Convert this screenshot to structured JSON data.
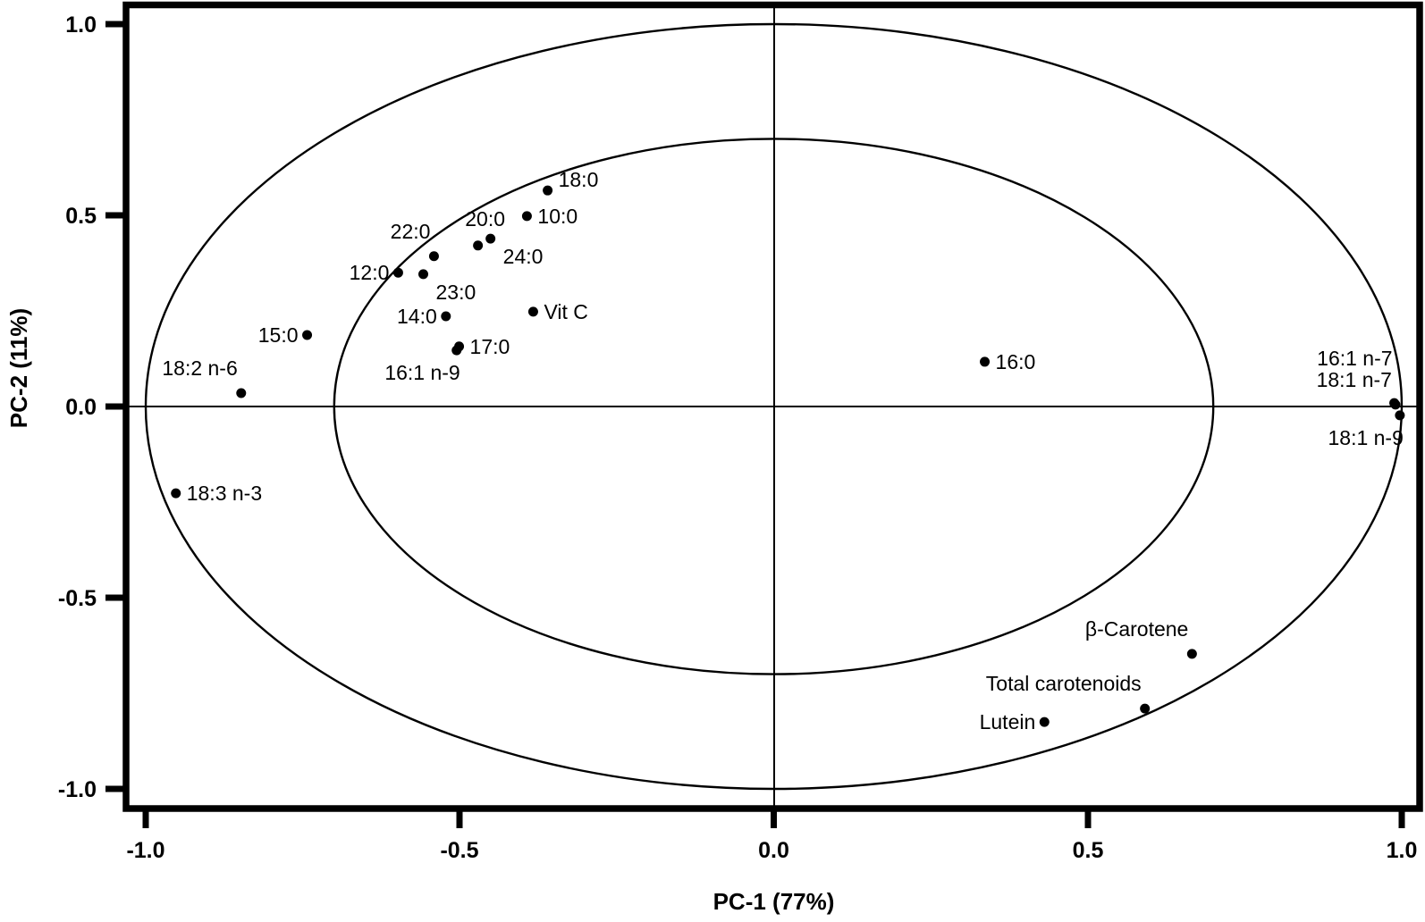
{
  "chart_data": {
    "type": "scatter",
    "title": "",
    "xlabel": "PC-1 (77%)",
    "ylabel": "PC-2 (11%)",
    "xlim": [
      -1.0,
      1.0
    ],
    "ylim": [
      -1.0,
      1.0
    ],
    "xticks": [
      "-1.0",
      "-0.5",
      "0.0",
      "0.5",
      "1.0"
    ],
    "yticks": [
      "1.0",
      "0.5",
      "0.0",
      "-0.5",
      "-1.0"
    ],
    "grid": false,
    "reference_lines": {
      "x": 0.0,
      "y": 0.0
    },
    "ellipses": [
      {
        "name": "outer",
        "radius": 1.0
      },
      {
        "name": "inner",
        "radius": 0.7
      }
    ],
    "points": [
      {
        "label": "18:0",
        "x": -0.36,
        "y": 0.565,
        "label_pos": "right-up"
      },
      {
        "label": "10:0",
        "x": -0.393,
        "y": 0.498,
        "label_pos": "right"
      },
      {
        "label": "20:0",
        "x": -0.471,
        "y": 0.421,
        "label_pos": "above"
      },
      {
        "label": "24:0",
        "x": -0.451,
        "y": 0.439,
        "label_pos": "below-right"
      },
      {
        "label": "22:0",
        "x": -0.541,
        "y": 0.393,
        "label_pos": "above-left"
      },
      {
        "label": "12:0",
        "x": -0.598,
        "y": 0.35,
        "label_pos": "left"
      },
      {
        "label": "23:0",
        "x": -0.558,
        "y": 0.346,
        "label_pos": "below-right"
      },
      {
        "label": "Vit C",
        "x": -0.383,
        "y": 0.248,
        "label_pos": "right"
      },
      {
        "label": "14:0",
        "x": -0.522,
        "y": 0.236,
        "label_pos": "left"
      },
      {
        "label": "17:0",
        "x": -0.501,
        "y": 0.157,
        "label_pos": "right"
      },
      {
        "label": "16:1 n-9",
        "x": -0.505,
        "y": 0.147,
        "label_pos": "below-left"
      },
      {
        "label": "15:0",
        "x": -0.743,
        "y": 0.187,
        "label_pos": "left"
      },
      {
        "label": "18:2 n-6",
        "x": -0.848,
        "y": 0.035,
        "label_pos": "above-left"
      },
      {
        "label": "18:3 n-3",
        "x": -0.952,
        "y": -0.227,
        "label_pos": "right"
      },
      {
        "label": "16:0",
        "x": 0.336,
        "y": 0.117,
        "label_pos": "right"
      },
      {
        "label": "16:1 n-7",
        "x": 0.988,
        "y": 0.009,
        "label_pos": "above-left-far"
      },
      {
        "label": "18:1 n-7",
        "x": 0.99,
        "y": 0.005,
        "label_pos": "above-left"
      },
      {
        "label": "18:1 n-9",
        "x": 0.997,
        "y": -0.023,
        "label_pos": "below-left"
      },
      {
        "label": "β-Carotene",
        "x": 0.666,
        "y": -0.647,
        "label_pos": "above-left"
      },
      {
        "label": "Total carotenoids",
        "x": 0.591,
        "y": -0.79,
        "label_pos": "above-left"
      },
      {
        "label": "Lutein",
        "x": 0.431,
        "y": -0.825,
        "label_pos": "left"
      }
    ]
  }
}
